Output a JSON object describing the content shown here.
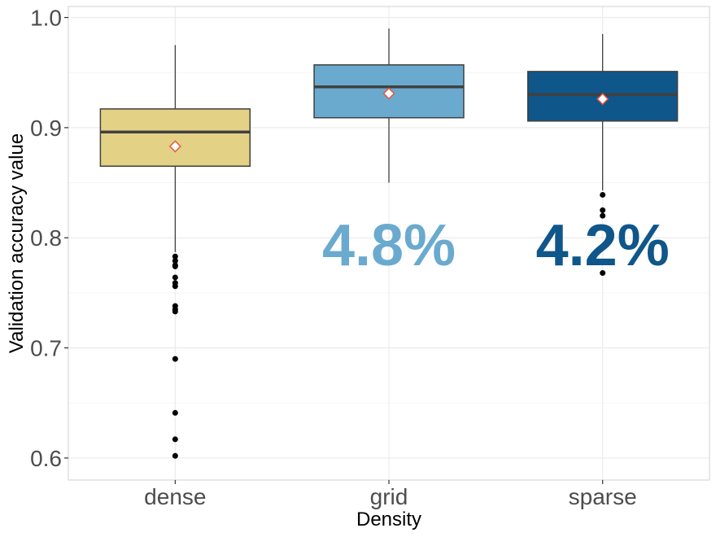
{
  "chart_data": {
    "type": "box",
    "xlabel": "Density",
    "ylabel": "Validation accuracy value",
    "ylim": [
      0.58,
      1.01
    ],
    "y_ticks": [
      "0.6",
      "0.7",
      "0.8",
      "0.9",
      "1.0"
    ],
    "grid": true,
    "categories": [
      "dense",
      "grid",
      "sparse"
    ],
    "boxes": [
      {
        "category": "dense",
        "color": "#E3D185",
        "whisker_low": 0.787,
        "q1": 0.865,
        "median": 0.896,
        "q3": 0.917,
        "whisker_high": 0.975,
        "mean": 0.883,
        "outliers": [
          0.783,
          0.779,
          0.775,
          0.774,
          0.764,
          0.759,
          0.756,
          0.738,
          0.735,
          0.733,
          0.69,
          0.641,
          0.617,
          0.602
        ]
      },
      {
        "category": "grid",
        "color": "#6AAACE",
        "whisker_low": 0.85,
        "q1": 0.909,
        "median": 0.937,
        "q3": 0.957,
        "whisker_high": 0.99,
        "mean": 0.931,
        "outliers": []
      },
      {
        "category": "sparse",
        "color": "#0F568B",
        "whisker_low": 0.843,
        "q1": 0.906,
        "median": 0.93,
        "q3": 0.951,
        "whisker_high": 0.985,
        "mean": 0.926,
        "outliers": [
          0.839,
          0.825,
          0.82,
          0.768
        ]
      }
    ],
    "annotations": [
      {
        "text": "4.8%",
        "category": "grid",
        "y": 0.775,
        "color": "#6AAACE"
      },
      {
        "text": "4.2%",
        "category": "sparse",
        "y": 0.775,
        "color": "#0F568B"
      }
    ],
    "colors": {
      "mean_marker_fill": "#ffffff",
      "mean_marker_stroke": "#E8573F",
      "median_line": "#404040",
      "box_outline": "#404040",
      "grid_major": "#EBEBEB",
      "panel_border": "#D9D9D9"
    }
  }
}
